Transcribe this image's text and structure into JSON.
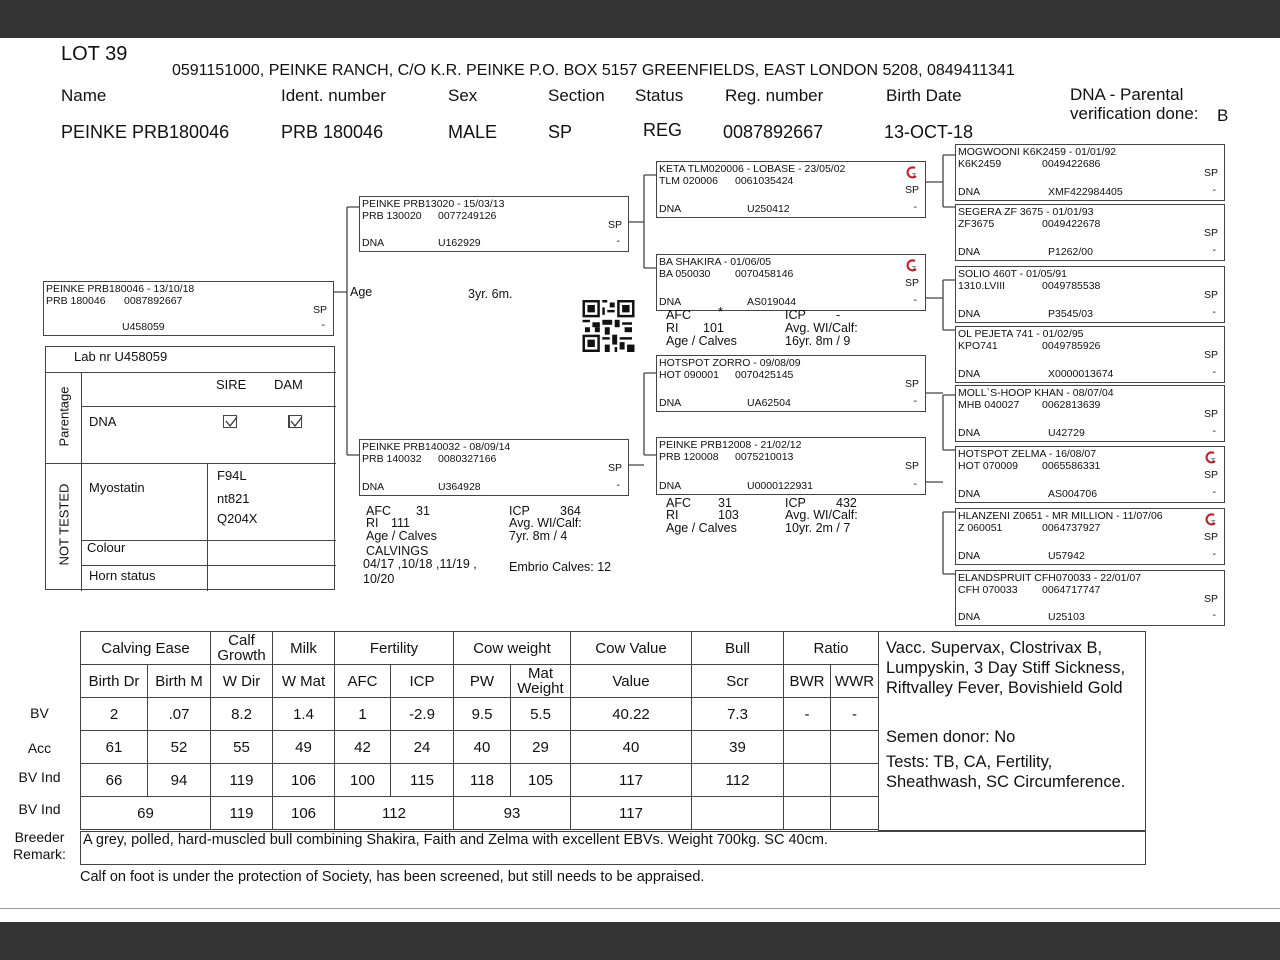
{
  "lot": "LOT 39",
  "owner_address": "0591151000, PEINKE RANCH, C/O K.R. PEINKE P.O. BOX 5157 GREENFIELDS, EAST LONDON 5208, 0849411341",
  "headers": {
    "name": "Name",
    "ident": "Ident. number",
    "sex": "Sex",
    "section": "Section",
    "status": "Status",
    "reg": "Reg. number",
    "birth": "Birth Date",
    "dna_line1": "DNA - Parental",
    "dna_line2": "verification done:"
  },
  "animal": {
    "name": "PEINKE PRB180046",
    "ident": "PRB 180046",
    "sex": "MALE",
    "section": "SP",
    "status": "REG",
    "reg": "0087892667",
    "birth": "13-OCT-18",
    "dna_verification": "B"
  },
  "pedigree": [
    {
      "role": "animal",
      "title": "PEINKE PRB180046 - 13/10/18",
      "ident": "PRB 180046",
      "reg": "0087892667",
      "section": "SP",
      "dna_label": "",
      "dna": "U458059",
      "dash": "-",
      "logo": false
    },
    {
      "role": "sire",
      "title": "PEINKE PRB13020 - 15/03/13",
      "ident": "PRB 130020",
      "reg": "0077249126",
      "section": "SP",
      "dna_label": "DNA",
      "dna": "U162929",
      "dash": "-",
      "logo": false
    },
    {
      "role": "dam",
      "title": "PEINKE PRB140032 - 08/09/14",
      "ident": "PRB 140032",
      "reg": "0080327166",
      "section": "SP",
      "dna_label": "DNA",
      "dna": "U364928",
      "dash": "-",
      "logo": false
    },
    {
      "role": "sire-sire",
      "title": "KETA TLM020006 - LOBASE - 23/05/02",
      "ident": "TLM 020006",
      "reg": "0061035424",
      "section": "SP",
      "dna_label": "DNA",
      "dna": "U250412",
      "dash": "-",
      "logo": true
    },
    {
      "role": "sire-dam",
      "title": "BA SHAKIRA - 01/06/05",
      "ident": "BA  050030",
      "reg": "0070458146",
      "section": "SP",
      "dna_label": "DNA",
      "dna": "AS019044",
      "dash": "-",
      "logo": true
    },
    {
      "role": "dam-sire",
      "title": "HOTSPOT ZORRO - 09/08/09",
      "ident": "HOT 090001",
      "reg": "0070425145",
      "section": "SP",
      "dna_label": "DNA",
      "dna": "UA62504",
      "dash": "-",
      "logo": false
    },
    {
      "role": "dam-dam",
      "title": "PEINKE PRB12008 - 21/02/12",
      "ident": "PRB 120008",
      "reg": "0075210013",
      "section": "SP",
      "dna_label": "DNA",
      "dna": "U0000122931",
      "dash": "-",
      "logo": false
    },
    {
      "role": "ggp",
      "title": "MOGWOONI K6K2459 - 01/01/92",
      "ident": "K6K2459",
      "reg": "0049422686",
      "section": "SP",
      "dna_label": "DNA",
      "dna": "XMF422984405",
      "dash": "-",
      "logo": false
    },
    {
      "role": "ggp",
      "title": "SEGERA ZF 3675 - 01/01/93",
      "ident": "ZF3675",
      "reg": "0049422678",
      "section": "SP",
      "dna_label": "DNA",
      "dna": "P1262/00",
      "dash": "-",
      "logo": false
    },
    {
      "role": "ggp",
      "title": "SOLIO 460T - 01/05/91",
      "ident": "1310.LVIII",
      "reg": "0049785538",
      "section": "SP",
      "dna_label": "DNA",
      "dna": "P3545/03",
      "dash": "-",
      "logo": false
    },
    {
      "role": "ggp",
      "title": "OL PEJETA 741 - 01/02/95",
      "ident": "KPO741",
      "reg": "0049785926",
      "section": "SP",
      "dna_label": "DNA",
      "dna": "X0000013674",
      "dash": "-",
      "logo": false
    },
    {
      "role": "ggp",
      "title": "MOLL`S-HOOP KHAN - 08/07/04",
      "ident": "MHB 040027",
      "reg": "0062813639",
      "section": "SP",
      "dna_label": "DNA",
      "dna": "U42729",
      "dash": "-",
      "logo": false
    },
    {
      "role": "ggp",
      "title": "HOTSPOT ZELMA - 16/08/07",
      "ident": "HOT 070009",
      "reg": "0065586331",
      "section": "SP",
      "dna_label": "DNA",
      "dna": "AS004706",
      "dash": "-",
      "logo": true
    },
    {
      "role": "ggp",
      "title": "HLANZENI Z0651 - MR MILLION - 11/07/06",
      "ident": "Z  060051",
      "reg": "0064737927",
      "section": "SP",
      "dna_label": "DNA",
      "dna": "U57942",
      "dash": "-",
      "logo": true
    },
    {
      "role": "ggp",
      "title": "ELANDSPRUIT CFH070033 - 22/01/07",
      "ident": "CFH 070033",
      "reg": "0064717747",
      "section": "SP",
      "dna_label": "DNA",
      "dna": "U25103",
      "dash": "-",
      "logo": false
    }
  ],
  "age": {
    "label": "Age",
    "value": "3yr. 6m."
  },
  "dam_stats": {
    "afc_label": "AFC",
    "afc": "31",
    "icp_label": "ICP",
    "icp": "364",
    "ri_label": "RI",
    "ri": "111",
    "avg_label": "Avg. WI/Calf:",
    "age_label": "Age / Calves",
    "age_calves": "7yr. 8m  / 4",
    "calvings_label": "CALVINGS",
    "calvings": "04/17 ,10/18 ,11/19 ,",
    "calvings2": "10/20",
    "embrio": "Embrio Calves: 12"
  },
  "sd_stats": {
    "afc_label": "AFC",
    "afc": "*",
    "icp_label": "ICP",
    "icp": "-",
    "ri_label": "RI",
    "ri": "101",
    "avg_label": "Avg. WI/Calf:",
    "age_label": "Age / Calves",
    "age_calves": "16yr. 8m  / 9"
  },
  "dd_stats": {
    "afc_label": "AFC",
    "afc": "31",
    "icp_label": "ICP",
    "icp": "432",
    "ri_label": "RI",
    "ri": "103",
    "avg_label": "Avg. WI/Calf:",
    "age_label": "Age / Calves",
    "age_calves": "10yr. 2m  / 7"
  },
  "lab": {
    "lab_nr": "Lab nr  U458059",
    "parentage": "Parentage",
    "not_tested": "NOT TESTED",
    "sire": "SIRE",
    "dam": "DAM",
    "dna": "DNA",
    "sire_checked": true,
    "dam_checked": true,
    "myostatin": "Myostatin",
    "myo_values": [
      "F94L",
      "nt821",
      "Q204X"
    ],
    "colour": "Colour",
    "horn": "Horn status"
  },
  "bv_table": {
    "header1": [
      {
        "label": "Calving Ease",
        "span": 2
      },
      {
        "label": "Calf Growth",
        "span": 1
      },
      {
        "label": "Milk",
        "span": 1
      },
      {
        "label": "Fertility",
        "span": 2
      },
      {
        "label": "Cow weight",
        "span": 2
      },
      {
        "label": "Cow Value",
        "span": 1
      },
      {
        "label": "Bull",
        "span": 1
      },
      {
        "label": "Ratio",
        "span": 2
      }
    ],
    "header2": [
      "Birth Dr",
      "Birth M",
      "W Dir",
      "W Mat",
      "AFC",
      "ICP",
      "PW",
      "Mat Weight",
      "Value",
      "Scr",
      "BWR",
      "WWR"
    ],
    "rows": [
      {
        "label": "BV",
        "cells": [
          {
            "v": "2"
          },
          {
            "v": ".07"
          },
          {
            "v": "8.2"
          },
          {
            "v": "1.4"
          },
          {
            "v": "1"
          },
          {
            "v": "-2.9"
          },
          {
            "v": "9.5"
          },
          {
            "v": "5.5"
          },
          {
            "v": "40.22"
          },
          {
            "v": "7.3"
          },
          {
            "v": "-"
          },
          {
            "v": "-"
          }
        ]
      },
      {
        "label": "Acc",
        "cells": [
          {
            "v": "61"
          },
          {
            "v": "52"
          },
          {
            "v": "55"
          },
          {
            "v": "49"
          },
          {
            "v": "42"
          },
          {
            "v": "24"
          },
          {
            "v": "40"
          },
          {
            "v": "29"
          },
          {
            "v": "40"
          },
          {
            "v": "39"
          },
          {
            "v": ""
          },
          {
            "v": ""
          }
        ]
      },
      {
        "label": "BV Ind",
        "cells": [
          {
            "v": "66"
          },
          {
            "v": "94"
          },
          {
            "v": "119"
          },
          {
            "v": "106"
          },
          {
            "v": "100"
          },
          {
            "v": "115"
          },
          {
            "v": "118"
          },
          {
            "v": "105"
          },
          {
            "v": "117"
          },
          {
            "v": "112"
          },
          {
            "v": ""
          },
          {
            "v": ""
          }
        ]
      },
      {
        "label": "BV Ind",
        "cells": [
          {
            "v": "69",
            "span": 2
          },
          {
            "v": "119"
          },
          {
            "v": "106"
          },
          {
            "v": "112",
            "span": 2
          },
          {
            "v": "93",
            "span": 2
          },
          {
            "v": "117"
          },
          {
            "v": ""
          },
          {
            "v": ""
          },
          {
            "v": ""
          }
        ]
      }
    ]
  },
  "vaccinations": "Vacc. Supervax, Clostrivax B, Lumpyskin, 3 Day Stiff Sickness, Riftvalley Fever, Bovishield Gold",
  "semen_donor": "Semen donor: No",
  "tests": "Tests: TB, CA, Fertility, Sheathwash, SC Circumference.",
  "breeder_label1": "Breeder",
  "breeder_label2": "Remark:",
  "breeder_remark": "A grey, polled, hard-muscled bull combining Shakira, Faith and Zelma with excellent EBVs. Weight 700kg. SC 40cm.",
  "footer_note": "Calf on foot is under the protection of Society, has been screened, but still needs to be appraised."
}
